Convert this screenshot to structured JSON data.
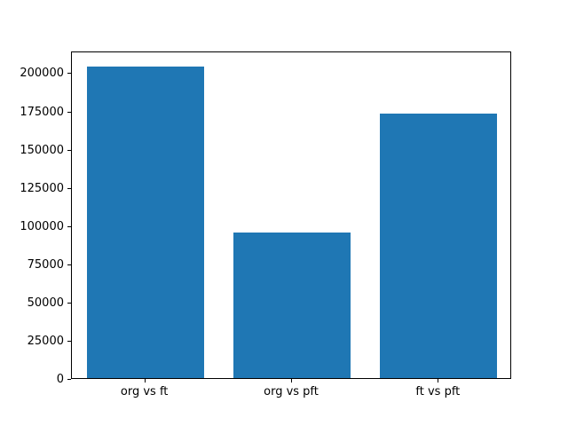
{
  "figure": {
    "background": "#ffffff",
    "spine_color": "#000000",
    "tick_color": "#000000"
  },
  "chart_data": {
    "type": "bar",
    "title": "",
    "xlabel": "",
    "ylabel": "",
    "categories": [
      "org vs ft",
      "org vs pft",
      "ft vs pft"
    ],
    "values": [
      204000,
      95000,
      173000
    ],
    "bar_color": "#1f77b4",
    "bar_width_fraction": 0.8,
    "ylim": [
      0,
      214200
    ],
    "yticks": [
      0,
      25000,
      50000,
      75000,
      100000,
      125000,
      150000,
      175000,
      200000
    ],
    "ytick_labels": [
      "0",
      "25000",
      "50000",
      "75000",
      "100000",
      "125000",
      "150000",
      "175000",
      "200000"
    ],
    "grid": false,
    "legend": null
  }
}
